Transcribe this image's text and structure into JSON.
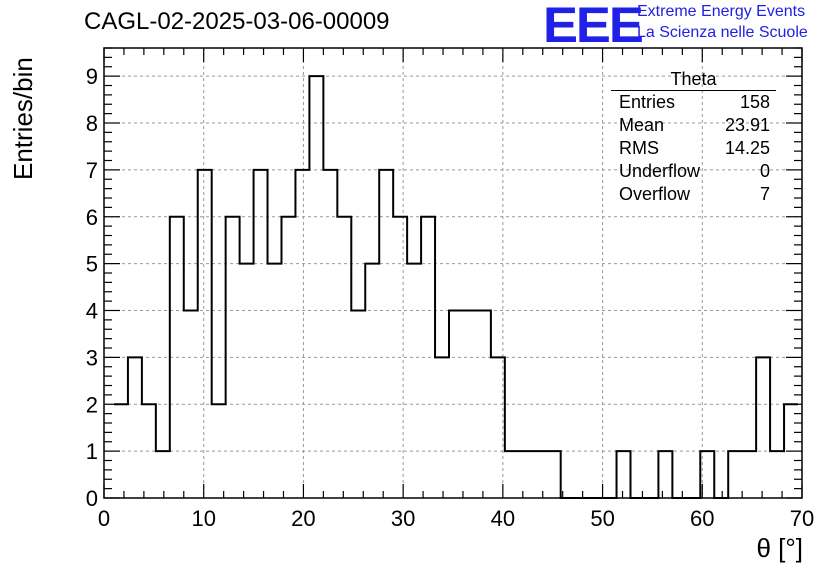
{
  "title": "CAGL-02-2025-03-06-00009",
  "branding": {
    "logo_text": "EEE",
    "line1": "Extreme Energy Events",
    "line2": "La Scienza nelle Scuole"
  },
  "stats_box": {
    "name": "Theta",
    "rows": [
      {
        "label": "Entries",
        "value": "158"
      },
      {
        "label": "Mean",
        "value": "23.91"
      },
      {
        "label": "RMS",
        "value": "14.25"
      },
      {
        "label": "Underflow",
        "value": "0"
      },
      {
        "label": "Overflow",
        "value": "7"
      }
    ]
  },
  "chart_data": {
    "type": "bar",
    "histogram": true,
    "title": "CAGL-02-2025-03-06-00009",
    "xlabel": "θ [°]",
    "ylabel": "Entries/bin",
    "xlim": [
      0,
      70
    ],
    "ylim": [
      0,
      9.6
    ],
    "bin_width": 1.4,
    "x_ticks": [
      0,
      10,
      20,
      30,
      40,
      50,
      60,
      70
    ],
    "y_ticks": [
      0,
      1,
      2,
      3,
      4,
      5,
      6,
      7,
      8,
      9
    ],
    "grid": true,
    "bin_edges_start": 1.0,
    "values": [
      2,
      3,
      2,
      1,
      6,
      4,
      7,
      2,
      6,
      5,
      7,
      5,
      6,
      7,
      9,
      7,
      6,
      4,
      5,
      7,
      6,
      5,
      6,
      3,
      4,
      4,
      4,
      3,
      1,
      1,
      1,
      1,
      0,
      0,
      0,
      0,
      1,
      0,
      0,
      1,
      0,
      0,
      1,
      0,
      1,
      1,
      3,
      1,
      2
    ]
  },
  "colors": {
    "logo": "#2020e6",
    "line": "#000000",
    "grid": "#999999"
  }
}
